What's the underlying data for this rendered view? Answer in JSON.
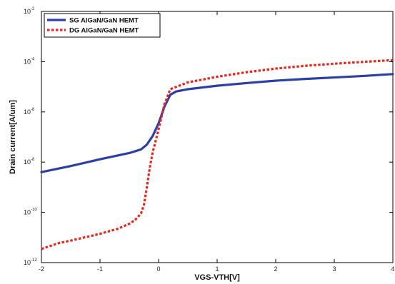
{
  "chart_data": {
    "type": "line",
    "title": "",
    "xlabel": "VGS-VTH[V]",
    "ylabel": "Drain current[A/um]",
    "xlim": [
      -2,
      4
    ],
    "ylim": [
      1e-12,
      0.01
    ],
    "yscale": "log",
    "x_ticks": [
      {
        "value": -2,
        "label": "-2"
      },
      {
        "value": -1,
        "label": "-1"
      },
      {
        "value": 0,
        "label": "0"
      },
      {
        "value": 1,
        "label": "1"
      },
      {
        "value": 2,
        "label": "2"
      },
      {
        "value": 3,
        "label": "3"
      },
      {
        "value": 4,
        "label": "4"
      }
    ],
    "y_ticks": [
      {
        "value": 1e-12,
        "base": "10",
        "exp": "-12"
      },
      {
        "value": 1e-10,
        "base": "10",
        "exp": "-10"
      },
      {
        "value": 1e-08,
        "base": "10",
        "exp": "-8"
      },
      {
        "value": 1e-06,
        "base": "10",
        "exp": "-6"
      },
      {
        "value": 0.0001,
        "base": "10",
        "exp": "-4"
      },
      {
        "value": 0.01,
        "base": "10",
        "exp": "-2"
      }
    ],
    "grid": false,
    "legend_position": "top-left",
    "series": [
      {
        "name": "SG AlGaN/GaN HEMT",
        "color": "#2b3fa8",
        "style": "solid",
        "x": [
          -2.0,
          -1.5,
          -1.0,
          -0.5,
          -0.3,
          -0.2,
          -0.1,
          0.0,
          0.1,
          0.2,
          0.3,
          0.5,
          1.0,
          1.5,
          2.0,
          2.5,
          3.0,
          3.5,
          4.0
        ],
        "y": [
          4e-09,
          7e-09,
          1.3e-08,
          2.3e-08,
          3.2e-08,
          5e-08,
          1.1e-07,
          3.5e-07,
          1.6e-06,
          4.8e-06,
          6.5e-06,
          8e-06,
          1.1e-05,
          1.4e-05,
          1.75e-05,
          2.05e-05,
          2.35e-05,
          2.7e-05,
          3.2e-05
        ]
      },
      {
        "name": "DG AlGaN/GaN HEMT",
        "color": "#e8261b",
        "style": "dotted",
        "x": [
          -2.0,
          -1.7,
          -1.5,
          -1.0,
          -0.7,
          -0.5,
          -0.4,
          -0.3,
          -0.25,
          -0.2,
          -0.15,
          -0.1,
          -0.05,
          0.0,
          0.1,
          0.2,
          0.5,
          1.0,
          1.5,
          2.0,
          2.5,
          3.0,
          3.5,
          4.0
        ],
        "y": [
          3.5e-12,
          6e-12,
          7.5e-12,
          1.4e-11,
          2.2e-11,
          3.5e-11,
          5e-11,
          9e-11,
          2e-10,
          1e-09,
          6e-09,
          2.5e-08,
          7e-08,
          2e-07,
          2e-06,
          8e-06,
          1.5e-05,
          2.5e-05,
          3.8e-05,
          5.3e-05,
          6.8e-05,
          8.3e-05,
          9.8e-05,
          0.000115
        ]
      }
    ]
  }
}
